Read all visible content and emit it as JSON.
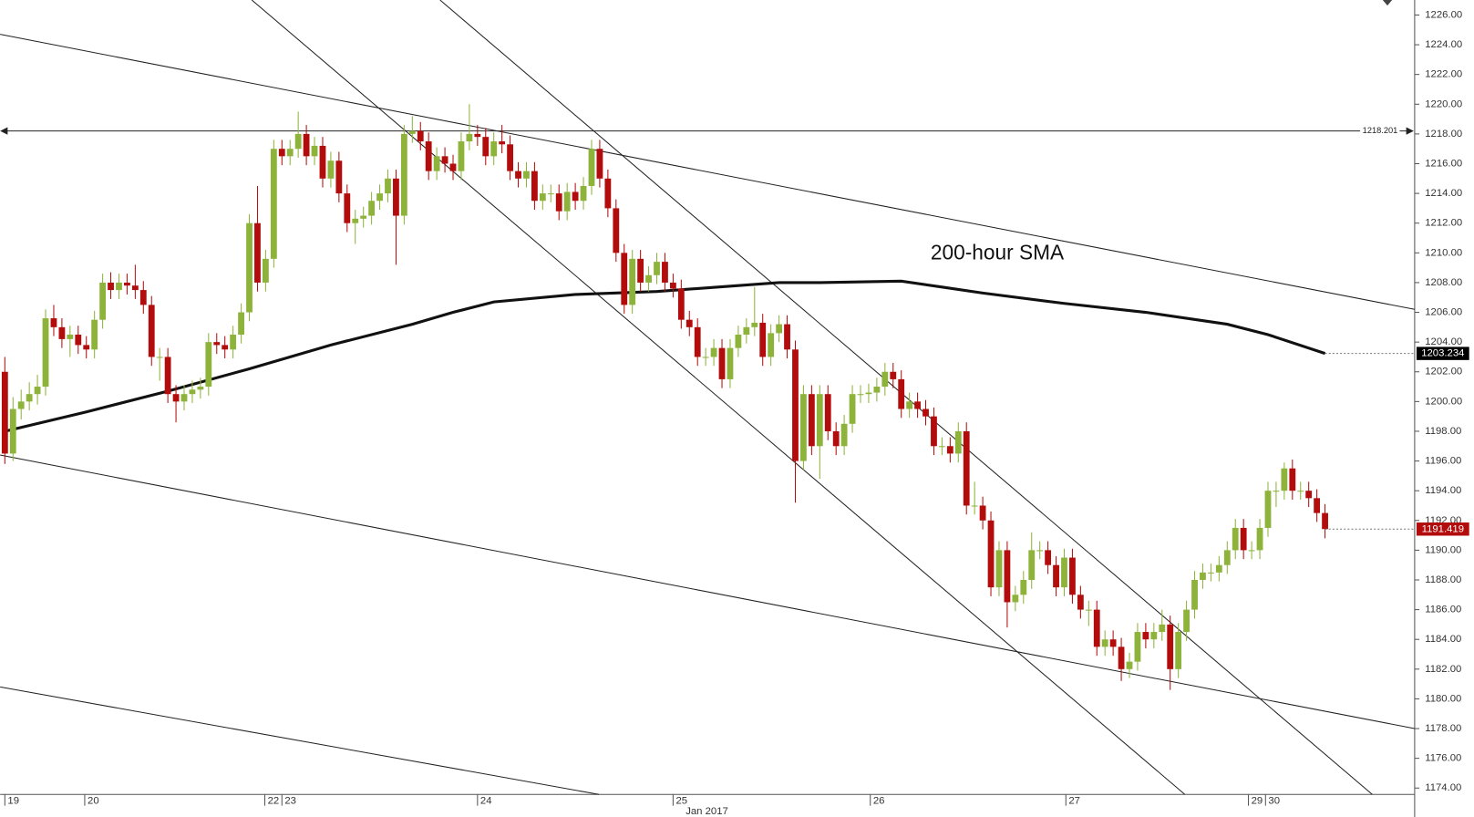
{
  "chart_data": {
    "type": "candlestick",
    "x_label": "Jan 2017",
    "annotation": "200-hour SMA",
    "colors": {
      "up": "#8db33a",
      "down": "#b30c0c"
    },
    "xlim": [
      -0.58,
      173
    ],
    "ylim": [
      1173.57,
      1227.01
    ],
    "xticks": [
      {
        "value": 0,
        "label": "19"
      },
      {
        "value": 9.8,
        "label": "20"
      },
      {
        "value": 31.9,
        "label": "22"
      },
      {
        "value": 34,
        "label": "23"
      },
      {
        "value": 58,
        "label": "24"
      },
      {
        "value": 82,
        "label": "25"
      },
      {
        "value": 106.2,
        "label": "26"
      },
      {
        "value": 130.2,
        "label": "27"
      },
      {
        "value": 152.6,
        "label": "29"
      },
      {
        "value": 154.7,
        "label": "30"
      }
    ],
    "yticks": [
      {
        "value": 1174,
        "label": "1174.00"
      },
      {
        "value": 1176,
        "label": "1176.00"
      },
      {
        "value": 1178,
        "label": "1178.00"
      },
      {
        "value": 1180,
        "label": "1180.00"
      },
      {
        "value": 1182,
        "label": "1182.00"
      },
      {
        "value": 1184,
        "label": "1184.00"
      },
      {
        "value": 1186,
        "label": "1186.00"
      },
      {
        "value": 1188,
        "label": "1188.00"
      },
      {
        "value": 1190,
        "label": "1190.00"
      },
      {
        "value": 1192,
        "label": "1192.00"
      },
      {
        "value": 1194,
        "label": "1194.00"
      },
      {
        "value": 1196,
        "label": "1196.00"
      },
      {
        "value": 1198,
        "label": "1198.00"
      },
      {
        "value": 1200,
        "label": "1200.00"
      },
      {
        "value": 1202,
        "label": "1202.00"
      },
      {
        "value": 1204,
        "label": "1204.00"
      },
      {
        "value": 1206,
        "label": "1206.00"
      },
      {
        "value": 1208,
        "label": "1208.00"
      },
      {
        "value": 1210,
        "label": "1210.00"
      },
      {
        "value": 1212,
        "label": "1212.00"
      },
      {
        "value": 1214,
        "label": "1214.00"
      },
      {
        "value": 1216,
        "label": "1216.00"
      },
      {
        "value": 1218,
        "label": "1218.00"
      },
      {
        "value": 1220,
        "label": "1220.00"
      },
      {
        "value": 1222,
        "label": "1222.00"
      },
      {
        "value": 1224,
        "label": "1224.00"
      },
      {
        "value": 1226,
        "label": "1226.00"
      }
    ],
    "x": [
      0,
      1,
      2,
      3,
      4,
      5,
      6,
      7,
      8,
      9,
      10,
      11,
      12,
      13,
      14,
      15,
      16,
      17,
      18,
      19,
      20,
      21,
      22,
      23,
      24,
      25,
      26,
      27,
      28,
      29,
      30,
      31,
      32,
      33,
      34,
      35,
      36,
      37,
      38,
      39,
      40,
      41,
      42,
      43,
      44,
      45,
      46,
      47,
      48,
      49,
      50,
      51,
      52,
      53,
      54,
      55,
      56,
      57,
      58,
      59,
      60,
      61,
      62,
      63,
      64,
      65,
      66,
      67,
      68,
      69,
      70,
      71,
      72,
      73,
      74,
      75,
      76,
      77,
      78,
      79,
      80,
      81,
      82,
      83,
      84,
      85,
      86,
      87,
      88,
      89,
      90,
      91,
      92,
      93,
      94,
      95,
      96,
      97,
      98,
      99,
      100,
      101,
      102,
      103,
      104,
      105,
      106,
      107,
      108,
      109,
      110,
      111,
      112,
      113,
      114,
      115,
      116,
      117,
      118,
      119,
      120,
      121,
      122,
      123,
      124,
      125,
      126,
      127,
      128,
      129,
      130,
      131,
      132,
      133,
      134,
      135,
      136,
      137,
      138,
      139,
      140,
      141,
      142,
      143,
      144,
      145,
      146,
      147,
      148,
      149,
      150,
      151,
      152,
      153,
      154,
      155,
      156,
      157,
      158,
      159,
      160,
      161,
      162
    ],
    "open": [
      1202,
      1196.5,
      1199.5,
      1200,
      1200.5,
      1201,
      1205.6,
      1205,
      1204.2,
      1204.5,
      1203.8,
      1203.5,
      1205.5,
      1208,
      1207.5,
      1208,
      1207.8,
      1207.5,
      1206.5,
      1203,
      1203,
      1200.5,
      1200,
      1200.5,
      1200.8,
      1201,
      1204,
      1203.8,
      1203.5,
      1204.5,
      1206,
      1212,
      1208,
      1209.6,
      1217,
      1216.5,
      1217,
      1218,
      1216.5,
      1217.2,
      1215,
      1216.2,
      1214,
      1212,
      1212.3,
      1212.5,
      1213.5,
      1214,
      1215,
      1212.5,
      1218,
      1218.2,
      1217.5,
      1215.5,
      1216.5,
      1216,
      1215.5,
      1217.5,
      1218,
      1217.8,
      1216.5,
      1217.5,
      1217.3,
      1215.5,
      1215,
      1215.5,
      1213.5,
      1214,
      1214,
      1212.8,
      1214.1,
      1213.5,
      1214.5,
      1217,
      1215,
      1213,
      1210,
      1206.5,
      1209.6,
      1208,
      1208.5,
      1209.4,
      1208,
      1207.6,
      1205.5,
      1205,
      1203,
      1203,
      1203.6,
      1201.5,
      1203.6,
      1204.5,
      1205,
      1205.3,
      1203,
      1204.6,
      1205.2,
      1203.5,
      1196,
      1200.5,
      1197,
      1200.5,
      1198,
      1197,
      1198.5,
      1200.5,
      1200.5,
      1200.6,
      1201,
      1202,
      1201.5,
      1199.5,
      1200,
      1199.5,
      1199,
      1197,
      1197,
      1196.5,
      1198,
      1193,
      1193,
      1192,
      1187.5,
      1190,
      1186.5,
      1187,
      1188,
      1190,
      1190,
      1189,
      1187.5,
      1189.5,
      1187,
      1186,
      1186,
      1183.5,
      1184,
      1183.5,
      1182,
      1182.5,
      1184.5,
      1184,
      1184.5,
      1185,
      1182,
      1184.5,
      1186,
      1188,
      1188.5,
      1188.5,
      1189,
      1190,
      1191.5,
      1190,
      1190,
      1191.5,
      1194,
      1194,
      1195.5,
      1194,
      1194,
      1193.5,
      1192.5
    ],
    "high": [
      1203,
      1200.3,
      1200.8,
      1201.3,
      1201.8,
      1206.2,
      1206.5,
      1205.6,
      1205.1,
      1205.1,
      1204.4,
      1206.1,
      1208.6,
      1208.7,
      1208.6,
      1208.6,
      1209.2,
      1208.1,
      1207.1,
      1203.6,
      1203.6,
      1201.1,
      1201.1,
      1201.4,
      1201.6,
      1204.6,
      1204.6,
      1204.4,
      1205.1,
      1206.6,
      1212.6,
      1214.5,
      1210.2,
      1217.6,
      1217.6,
      1217.6,
      1219.5,
      1218.6,
      1217.8,
      1217.8,
      1216.8,
      1216.8,
      1214.6,
      1212.9,
      1213.1,
      1214.1,
      1214.6,
      1215.6,
      1215.6,
      1218.6,
      1219.2,
      1218.8,
      1218.1,
      1217.1,
      1217.1,
      1216.6,
      1218.1,
      1220,
      1218.6,
      1218.4,
      1218.1,
      1218.6,
      1217.9,
      1216.1,
      1216.1,
      1216.1,
      1214.6,
      1214.6,
      1214.6,
      1214.7,
      1214.7,
      1215.1,
      1217.6,
      1217.6,
      1215.6,
      1213.6,
      1210.6,
      1210.2,
      1210.2,
      1209.1,
      1210,
      1210,
      1208.6,
      1208.2,
      1206.1,
      1205.6,
      1203.6,
      1204.2,
      1204.2,
      1204.2,
      1205.1,
      1205.6,
      1207.7,
      1205.9,
      1205.2,
      1205.8,
      1205.8,
      1204.1,
      1201.1,
      1201.1,
      1201.1,
      1201.1,
      1198.6,
      1199.1,
      1201.1,
      1201.1,
      1201.2,
      1201.6,
      1202.6,
      1202.6,
      1202.1,
      1200.6,
      1200.6,
      1200.1,
      1199.6,
      1197.6,
      1197.6,
      1198.6,
      1198.6,
      1194.6,
      1193.6,
      1192.6,
      1190.6,
      1190.6,
      1187.6,
      1188.6,
      1191.2,
      1190.6,
      1190.6,
      1189.6,
      1190.1,
      1190.1,
      1187.6,
      1186.6,
      1186.6,
      1184.6,
      1184.6,
      1184.1,
      1183.1,
      1185.1,
      1185.1,
      1185.1,
      1186,
      1185.6,
      1185.1,
      1186.6,
      1188.6,
      1189.1,
      1189.1,
      1189.6,
      1190.6,
      1192.1,
      1192.1,
      1190.6,
      1192.1,
      1194.6,
      1194.6,
      1195.9,
      1196.1,
      1194.6,
      1194.6,
      1194.1,
      1193.1
    ],
    "low": [
      1195.8,
      1196,
      1198.8,
      1199.4,
      1199.8,
      1200.4,
      1204.4,
      1203.6,
      1203,
      1203.2,
      1202.9,
      1202.9,
      1204.9,
      1206.9,
      1206.9,
      1207.2,
      1206.9,
      1205.9,
      1202.4,
      1201.4,
      1199.9,
      1198.6,
      1199.4,
      1199.9,
      1200.2,
      1200.4,
      1203.2,
      1202.9,
      1202.9,
      1203.9,
      1205.4,
      1207.4,
      1207.4,
      1209,
      1215.9,
      1215.9,
      1216.4,
      1215.9,
      1215.9,
      1214.4,
      1214.4,
      1213.4,
      1211.4,
      1210.6,
      1211.7,
      1211.9,
      1212.9,
      1213.4,
      1209.2,
      1211.9,
      1217.4,
      1216.9,
      1214.9,
      1214.9,
      1215.4,
      1214.9,
      1214.9,
      1216.9,
      1217.2,
      1215.9,
      1215.9,
      1216.7,
      1214.9,
      1214.4,
      1214.4,
      1212.9,
      1212.9,
      1213.4,
      1212.2,
      1212.2,
      1212.9,
      1212.9,
      1213.9,
      1214.4,
      1212.4,
      1209.4,
      1205.9,
      1205.9,
      1207.4,
      1207.4,
      1207.9,
      1207.4,
      1207,
      1204.9,
      1204.4,
      1202.4,
      1202.4,
      1202.4,
      1200.9,
      1200.9,
      1203,
      1203.9,
      1204.4,
      1202.4,
      1202.4,
      1204,
      1202.9,
      1193.2,
      1195.4,
      1196.4,
      1194.8,
      1197.4,
      1196.4,
      1196.4,
      1197.9,
      1199.9,
      1199.9,
      1200,
      1200.4,
      1200.9,
      1198.9,
      1198.9,
      1198.9,
      1198.4,
      1196.4,
      1196.4,
      1195.9,
      1195.9,
      1192.4,
      1192.4,
      1191.4,
      1186.9,
      1186.9,
      1184.8,
      1185.9,
      1186.4,
      1187.4,
      1189.4,
      1188.4,
      1186.9,
      1186.9,
      1186.4,
      1185.4,
      1184.9,
      1182.9,
      1182.9,
      1182.9,
      1181.2,
      1181.4,
      1181.9,
      1183.4,
      1183.4,
      1183.9,
      1180.6,
      1181.4,
      1183.9,
      1185.4,
      1187.4,
      1187.9,
      1187.9,
      1188.4,
      1189.4,
      1189.4,
      1189.4,
      1189.4,
      1190.9,
      1192.9,
      1193.4,
      1193.4,
      1193.4,
      1192.9,
      1191.9,
      1190.8
    ],
    "close": [
      1196.5,
      1199.5,
      1200,
      1200.5,
      1201,
      1205.6,
      1205,
      1204.2,
      1204.5,
      1203.8,
      1203.5,
      1205.5,
      1208,
      1207.5,
      1208,
      1207.8,
      1207.5,
      1206.5,
      1203,
      1203,
      1200.5,
      1200,
      1200.5,
      1200.8,
      1201,
      1204,
      1203.8,
      1203.5,
      1204.5,
      1206,
      1212,
      1208,
      1209.6,
      1217,
      1216.5,
      1217,
      1218,
      1216.5,
      1217.2,
      1215,
      1216.2,
      1214,
      1212,
      1212.3,
      1212.5,
      1213.5,
      1214,
      1215,
      1212.5,
      1218,
      1218.2,
      1217.5,
      1215.5,
      1216.5,
      1216,
      1215.5,
      1217.5,
      1218,
      1217.8,
      1216.5,
      1217.5,
      1217.3,
      1215.5,
      1215,
      1215.5,
      1213.5,
      1214,
      1214,
      1212.8,
      1214.1,
      1213.5,
      1214.5,
      1217,
      1215,
      1213,
      1210,
      1206.5,
      1209.6,
      1208,
      1208.5,
      1209.4,
      1208,
      1207.6,
      1205.5,
      1205,
      1203,
      1203,
      1203.6,
      1201.5,
      1203.6,
      1204.5,
      1205,
      1205.3,
      1203,
      1204.6,
      1205.2,
      1203.5,
      1196,
      1200.5,
      1197,
      1200.5,
      1198,
      1197,
      1198.5,
      1200.5,
      1200.5,
      1200.6,
      1201,
      1202,
      1201.5,
      1199.5,
      1200,
      1199.5,
      1199,
      1197,
      1197,
      1196.5,
      1198,
      1193,
      1193,
      1192,
      1187.5,
      1190,
      1186.5,
      1187,
      1188,
      1190,
      1190,
      1189,
      1187.5,
      1189.5,
      1187,
      1186,
      1186,
      1183.5,
      1184,
      1183.5,
      1182,
      1182.5,
      1184.5,
      1184,
      1184.5,
      1185,
      1182,
      1184.5,
      1186,
      1188,
      1188.5,
      1188.5,
      1189,
      1190,
      1191.5,
      1190,
      1190,
      1191.5,
      1194,
      1194,
      1195.5,
      1194,
      1194,
      1193.5,
      1192.5,
      1191.419
    ],
    "sma": {
      "color": "#111111",
      "x": [
        0,
        10,
        20,
        30,
        40,
        50,
        55,
        60,
        70,
        80,
        90,
        95,
        100,
        110,
        115,
        120,
        130,
        140,
        150,
        155,
        162
      ],
      "values": [
        1198,
        1199.3,
        1200.7,
        1202.2,
        1203.8,
        1205.2,
        1206,
        1206.7,
        1207.2,
        1207.4,
        1207.8,
        1208,
        1208,
        1208.1,
        1207.7,
        1207.3,
        1206.6,
        1206,
        1205.2,
        1204.5,
        1203.234
      ]
    },
    "trendlines": [
      {
        "x": [
          -0.58,
          173
        ],
        "values": [
          1224.7,
          1206.2
        ]
      },
      {
        "x": [
          -0.58,
          173
        ],
        "values": [
          1196.4,
          1178.0
        ]
      },
      {
        "x": [
          -0.58,
          72.9
        ],
        "values": [
          1180.8,
          1173.57
        ]
      },
      {
        "x": [
          30.3,
          144.8
        ],
        "values": [
          1227.01,
          1173.57
        ]
      },
      {
        "x": [
          53.4,
          167.8
        ],
        "values": [
          1227.01,
          1173.57
        ]
      }
    ],
    "level": 1218.201,
    "price_tags": [
      {
        "value": 1203.234,
        "color": "#000000"
      },
      {
        "value": 1191.419,
        "color": "#b30c0c"
      }
    ]
  }
}
